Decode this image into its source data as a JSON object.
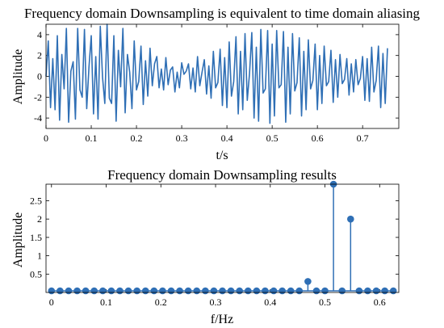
{
  "colors": {
    "series": "#2f6fb5",
    "axis": "#000000"
  },
  "chart_data": [
    {
      "type": "line",
      "title": "Frequency domain Downsampling is equivalent to time domain aliasing",
      "xlabel": "t/s",
      "ylabel": "Amplitude",
      "xlim": [
        0,
        0.78
      ],
      "ylim": [
        -5,
        5
      ],
      "xticks": [
        0,
        0.1,
        0.2,
        0.3,
        0.4,
        0.5,
        0.6,
        0.7
      ],
      "xtick_labels": [
        "0",
        "0.1",
        "0.2",
        "0.3",
        "0.4",
        "0.5",
        "0.6",
        "0.7"
      ],
      "yticks": [
        -4,
        -2,
        0,
        2,
        4
      ],
      "ytick_labels": [
        "-4",
        "-2",
        "0",
        "2",
        "4"
      ],
      "grid": false,
      "series": [
        {
          "sample_interval": 0.005,
          "x_start": 0,
          "values": [
            0,
            3.4,
            -3,
            1.7,
            -3.2,
            3.9,
            -4.2,
            2.1,
            -1.2,
            4.6,
            -4.4,
            0.5,
            1.4,
            -4.1,
            4.6,
            -1.3,
            -2,
            4.5,
            -3.1,
            0.9,
            3.9,
            -3.6,
            1.9,
            -4.1,
            4.8,
            -0.1,
            -2.6,
            5.0,
            -2.1,
            -2.6,
            3.9,
            -4.3,
            2.5,
            -1,
            4.6,
            -3.5,
            2.1,
            0.4,
            -3.1,
            3.4,
            -1.3,
            -0.5,
            2.9,
            -2.7,
            1.5,
            -1.9,
            2.7,
            -0.9,
            1.2,
            1.9,
            -1.1,
            0.7,
            -1.3,
            1.8,
            -0.8,
            0.6,
            0.9,
            -1.5,
            0.4,
            -1.1,
            1.3,
            0.2,
            0.5,
            1.2,
            -1.2,
            0.8,
            -1.5,
            1.9,
            -0.9,
            0.4,
            1.6,
            -1.7,
            1.0,
            -2.1,
            2.4,
            -1.1,
            -0.6,
            2.6,
            -2.8,
            1.8,
            -3.0,
            3.3,
            -1.9,
            -0.5,
            3.8,
            -3.6,
            2.4,
            -3.2,
            4.1,
            -2.3,
            0.3,
            4.2,
            -4.0,
            2.8,
            -4.3,
            4.5,
            -1.6,
            -1.2,
            4.4,
            -4.5,
            3.1,
            -3.8,
            4.4,
            -1.1,
            -0.8,
            4.3,
            -4.4,
            2.8,
            -3.6,
            4.1,
            -1.4,
            -0.6,
            3.7,
            -3.8,
            2.4,
            -3.2,
            3.5,
            -1.2,
            -0.4,
            3.1,
            -3.2,
            2.0,
            -2.6,
            2.9,
            -0.9,
            -0.5,
            2.5,
            -2.5,
            1.6,
            -2.0,
            2.1,
            -0.7,
            -0.3,
            1.7,
            -1.8,
            1.2,
            -1.5,
            1.6,
            -0.8,
            -0.2,
            1.9,
            -2.3,
            1.7,
            -2.4,
            2.8,
            -1.5,
            -0.4,
            2.9,
            -3.0,
            2.2,
            -2.6,
            2.7
          ],
          "color": "#2f6fb5"
        }
      ]
    },
    {
      "type": "stem",
      "title": "Frequency domain Downsampling results",
      "xlabel": "f/Hz",
      "ylabel": "Amplitude",
      "xlim": [
        -0.01,
        0.635
      ],
      "ylim": [
        0,
        2.95
      ],
      "xticks": [
        0,
        0.1,
        0.2,
        0.3,
        0.4,
        0.5,
        0.6
      ],
      "xtick_labels": [
        "0",
        "0.1",
        "0.2",
        "0.3",
        "0.4",
        "0.5",
        "0.6"
      ],
      "yticks": [
        0.5,
        1,
        1.5,
        2,
        2.5
      ],
      "ytick_labels": [
        "0.5",
        "1",
        "1.5",
        "2",
        "2.5"
      ],
      "grid": false,
      "series": [
        {
          "x": [
            0,
            0.0156,
            0.0313,
            0.0469,
            0.0625,
            0.0781,
            0.0938,
            0.1094,
            0.125,
            0.1406,
            0.1563,
            0.1719,
            0.1875,
            0.2031,
            0.2188,
            0.2344,
            0.25,
            0.2656,
            0.2813,
            0.2969,
            0.3125,
            0.3281,
            0.3438,
            0.3594,
            0.375,
            0.3906,
            0.4063,
            0.4219,
            0.4375,
            0.4531,
            0.4688,
            0.4844,
            0.5,
            0.5156,
            0.5313,
            0.5469,
            0.5625,
            0.5781,
            0.5938,
            0.6094,
            0.625
          ],
          "values": [
            0,
            0,
            0,
            0,
            0,
            0,
            0,
            0,
            0,
            0,
            0,
            0,
            0,
            0,
            0,
            0,
            0,
            0,
            0,
            0,
            0,
            0,
            0,
            0,
            0,
            0,
            0,
            0,
            0,
            0,
            0.3,
            0,
            0,
            2.95,
            0,
            2.0,
            0,
            0,
            0,
            0,
            0
          ],
          "color": "#2f6fb5"
        }
      ]
    }
  ]
}
